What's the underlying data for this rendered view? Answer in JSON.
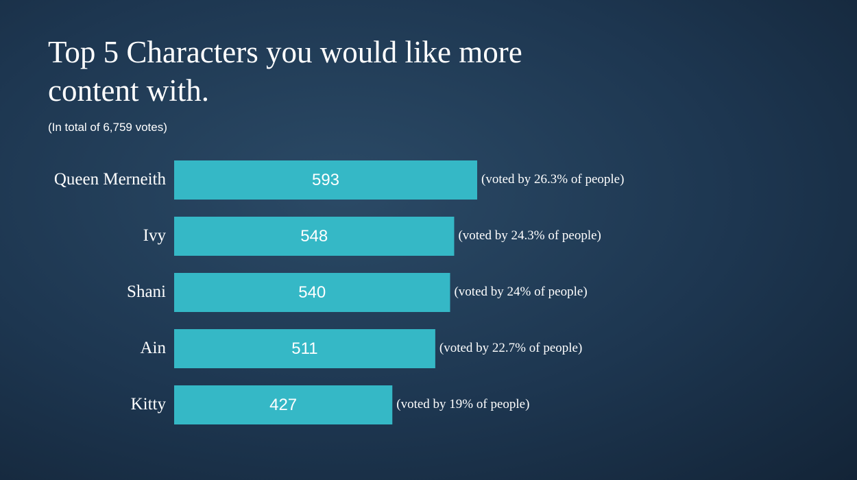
{
  "chart_data": {
    "type": "barh",
    "title": "Top 5 Characters you would like more content with.",
    "subtitle": "(In total of 6,759 votes)",
    "categories": [
      "Queen Merneith",
      "Ivy",
      "Shani",
      "Ain",
      "Kitty"
    ],
    "values": [
      593,
      548,
      540,
      511,
      427
    ],
    "annotations": [
      "(voted by 26.3% of people)",
      "(voted by 24.3% of people)",
      "(voted by 24% of people)",
      "(voted by 22.7% of people)",
      "(voted by 19% of people)"
    ],
    "color": "#35b8c6"
  }
}
